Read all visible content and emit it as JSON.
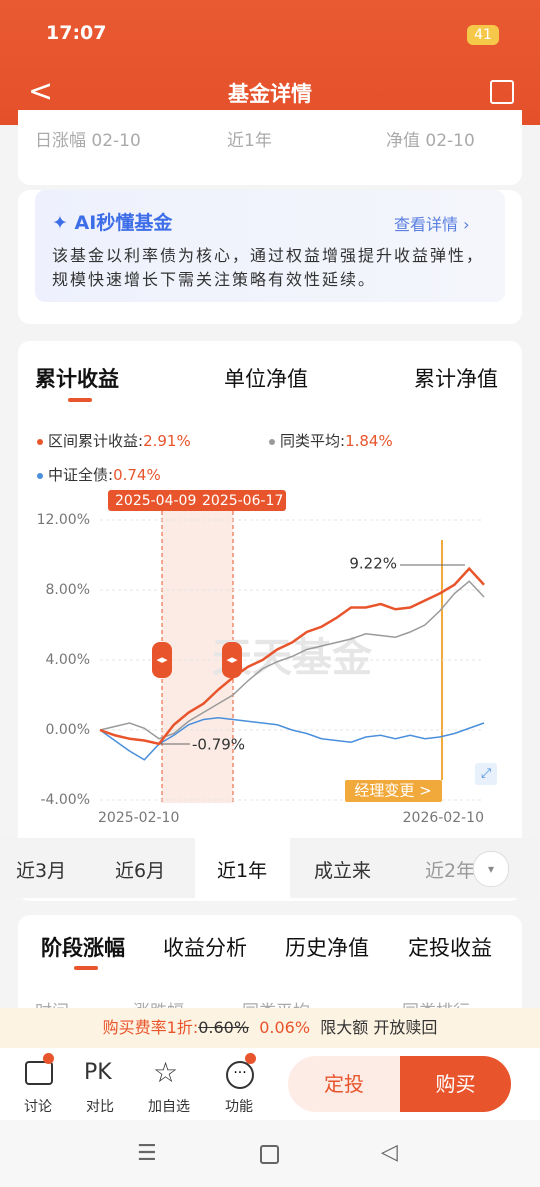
{
  "status_bar": {
    "time": "17:07",
    "battery": "41"
  },
  "header": {
    "title": "基金详情"
  },
  "summary_row": [
    "日涨幅 02-10",
    "近1年",
    "净值 02-10"
  ],
  "ai_card": {
    "title": "AI秒懂基金",
    "link": "查看详情",
    "text": "该基金以利率债为核心，通过权益增强提升收益弹性，规模快速增长下需关注策略有效性延续。"
  },
  "chart_tabs": [
    "累计收益",
    "单位净值",
    "累计净值"
  ],
  "chart_data": {
    "type": "line",
    "categories": [
      "2025-02-10",
      null,
      null,
      null,
      null,
      null,
      null,
      null,
      null,
      null,
      null,
      null,
      null,
      null,
      null,
      null,
      null,
      null,
      null,
      null,
      null,
      null,
      null,
      null,
      null,
      null,
      "2026-02-10"
    ],
    "series": [
      {
        "name": "区间累计收益:",
        "summary": "2.91%",
        "color": "#e8552c",
        "values": [
          0,
          -0.3,
          -0.5,
          -0.6,
          -0.79,
          0.3,
          1.0,
          1.5,
          2.3,
          3.0,
          3.6,
          4.0,
          4.6,
          5.0,
          5.6,
          5.9,
          6.4,
          7.0,
          7.0,
          7.2,
          6.9,
          7.0,
          7.4,
          7.8,
          8.3,
          9.22,
          8.3
        ]
      },
      {
        "name": "同类平均:",
        "summary": "1.84%",
        "color": "#9a9a9a",
        "values": [
          0,
          0.2,
          0.4,
          0.1,
          -0.5,
          -0.2,
          0.5,
          1.0,
          1.5,
          2.0,
          2.8,
          3.5,
          3.9,
          4.2,
          4.6,
          4.8,
          5.0,
          5.2,
          5.5,
          5.4,
          5.3,
          5.6,
          6.0,
          6.8,
          7.8,
          8.5,
          7.6
        ]
      },
      {
        "name": "中证全债:",
        "summary": "0.74%",
        "color": "#4a8fdc",
        "values": [
          0,
          -0.6,
          -1.2,
          -1.7,
          -0.8,
          -0.3,
          0.3,
          0.6,
          0.7,
          0.6,
          0.5,
          0.4,
          0.3,
          0.0,
          -0.2,
          -0.5,
          -0.6,
          -0.7,
          -0.4,
          -0.3,
          -0.5,
          -0.3,
          -0.5,
          -0.4,
          -0.2,
          0.1,
          0.4
        ]
      }
    ],
    "ylim": [
      -4,
      12
    ],
    "yticks": [
      {
        "value": 12,
        "label": "12.00%"
      },
      {
        "value": 8,
        "label": "8.00%"
      },
      {
        "value": 4,
        "label": "4.00%"
      },
      {
        "value": 0,
        "label": "0.00%"
      },
      {
        "value": -4,
        "label": "-4.00%"
      }
    ],
    "grid": true,
    "range_labels": [
      "2025-04-09",
      "2025-06-17"
    ],
    "annotations": {
      "max_label": "9.22%",
      "min_label": "-0.79%",
      "event": "经理变更 >"
    },
    "watermark": "天天基金"
  },
  "period_tabs": [
    "近3月",
    "近6月",
    "近1年",
    "成立来",
    "近2年"
  ],
  "section_tabs": [
    "阶段涨幅",
    "收益分析",
    "历史净值",
    "定投收益"
  ],
  "table_header": [
    "时间",
    "涨跌幅",
    "同类平均",
    "同类排行"
  ],
  "fee_banner": {
    "label": "购买费率1折:",
    "original": "0.60%",
    "discounted": "0.06%",
    "note": "限大额 开放赎回"
  },
  "bottom_bar": {
    "icon_pk": "PK",
    "actions": [
      "讨论",
      "对比",
      "加自选",
      "功能"
    ],
    "buttons": [
      "定投",
      "购买"
    ]
  }
}
